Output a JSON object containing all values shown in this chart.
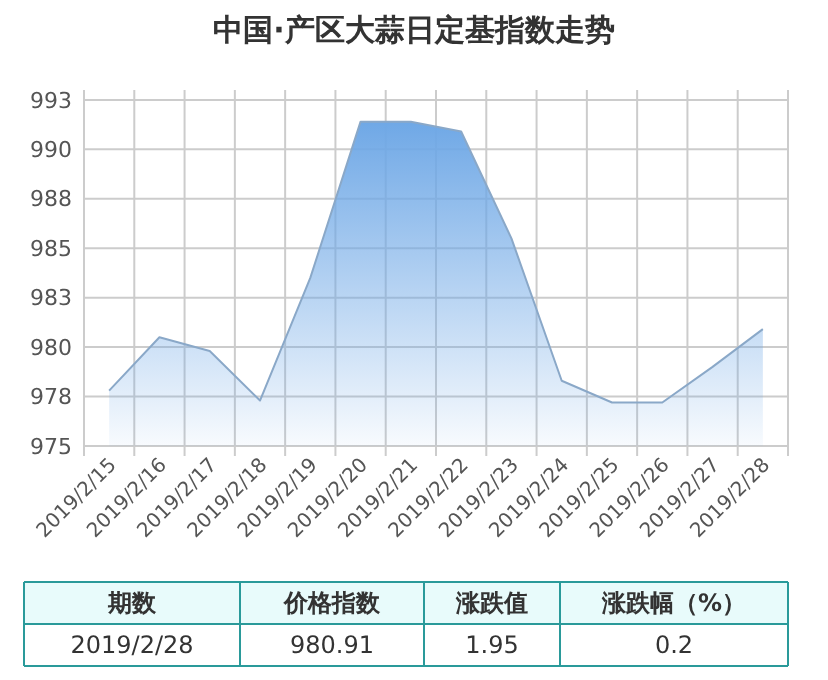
{
  "chart_data": {
    "type": "area",
    "title": "中国·产区大蒜日定基指数走势",
    "categories": [
      "2019/2/15",
      "2019/2/16",
      "2019/2/17",
      "2019/2/18",
      "2019/2/19",
      "2019/2/20",
      "2019/2/21",
      "2019/2/22",
      "2019/2/23",
      "2019/2/24",
      "2019/2/25",
      "2019/2/26",
      "2019/2/27",
      "2019/2/28"
    ],
    "series": [
      {
        "color": "#6fa8e6",
        "values": [
          977.8,
          980.5,
          979.8,
          977.3,
          983.5,
          991.4,
          991.4,
          990.9,
          985.5,
          978.3,
          977.2,
          977.2,
          979.0,
          980.91
        ]
      }
    ],
    "ylim": [
      975,
      993
    ],
    "yticks": [
      975,
      {
        "value": 977.5,
        "label": "978"
      },
      980,
      {
        "value": 982.5,
        "label": "983"
      },
      985,
      {
        "value": 987.5,
        "label": "988"
      },
      990,
      {
        "value": 992.5,
        "label": "993"
      }
    ],
    "grid": true,
    "annotations": [
      "期数",
      "价格指数",
      "涨跌值",
      "涨跌幅（%）",
      "2019/2/28",
      "980.91",
      "1.95",
      "0.2"
    ]
  }
}
